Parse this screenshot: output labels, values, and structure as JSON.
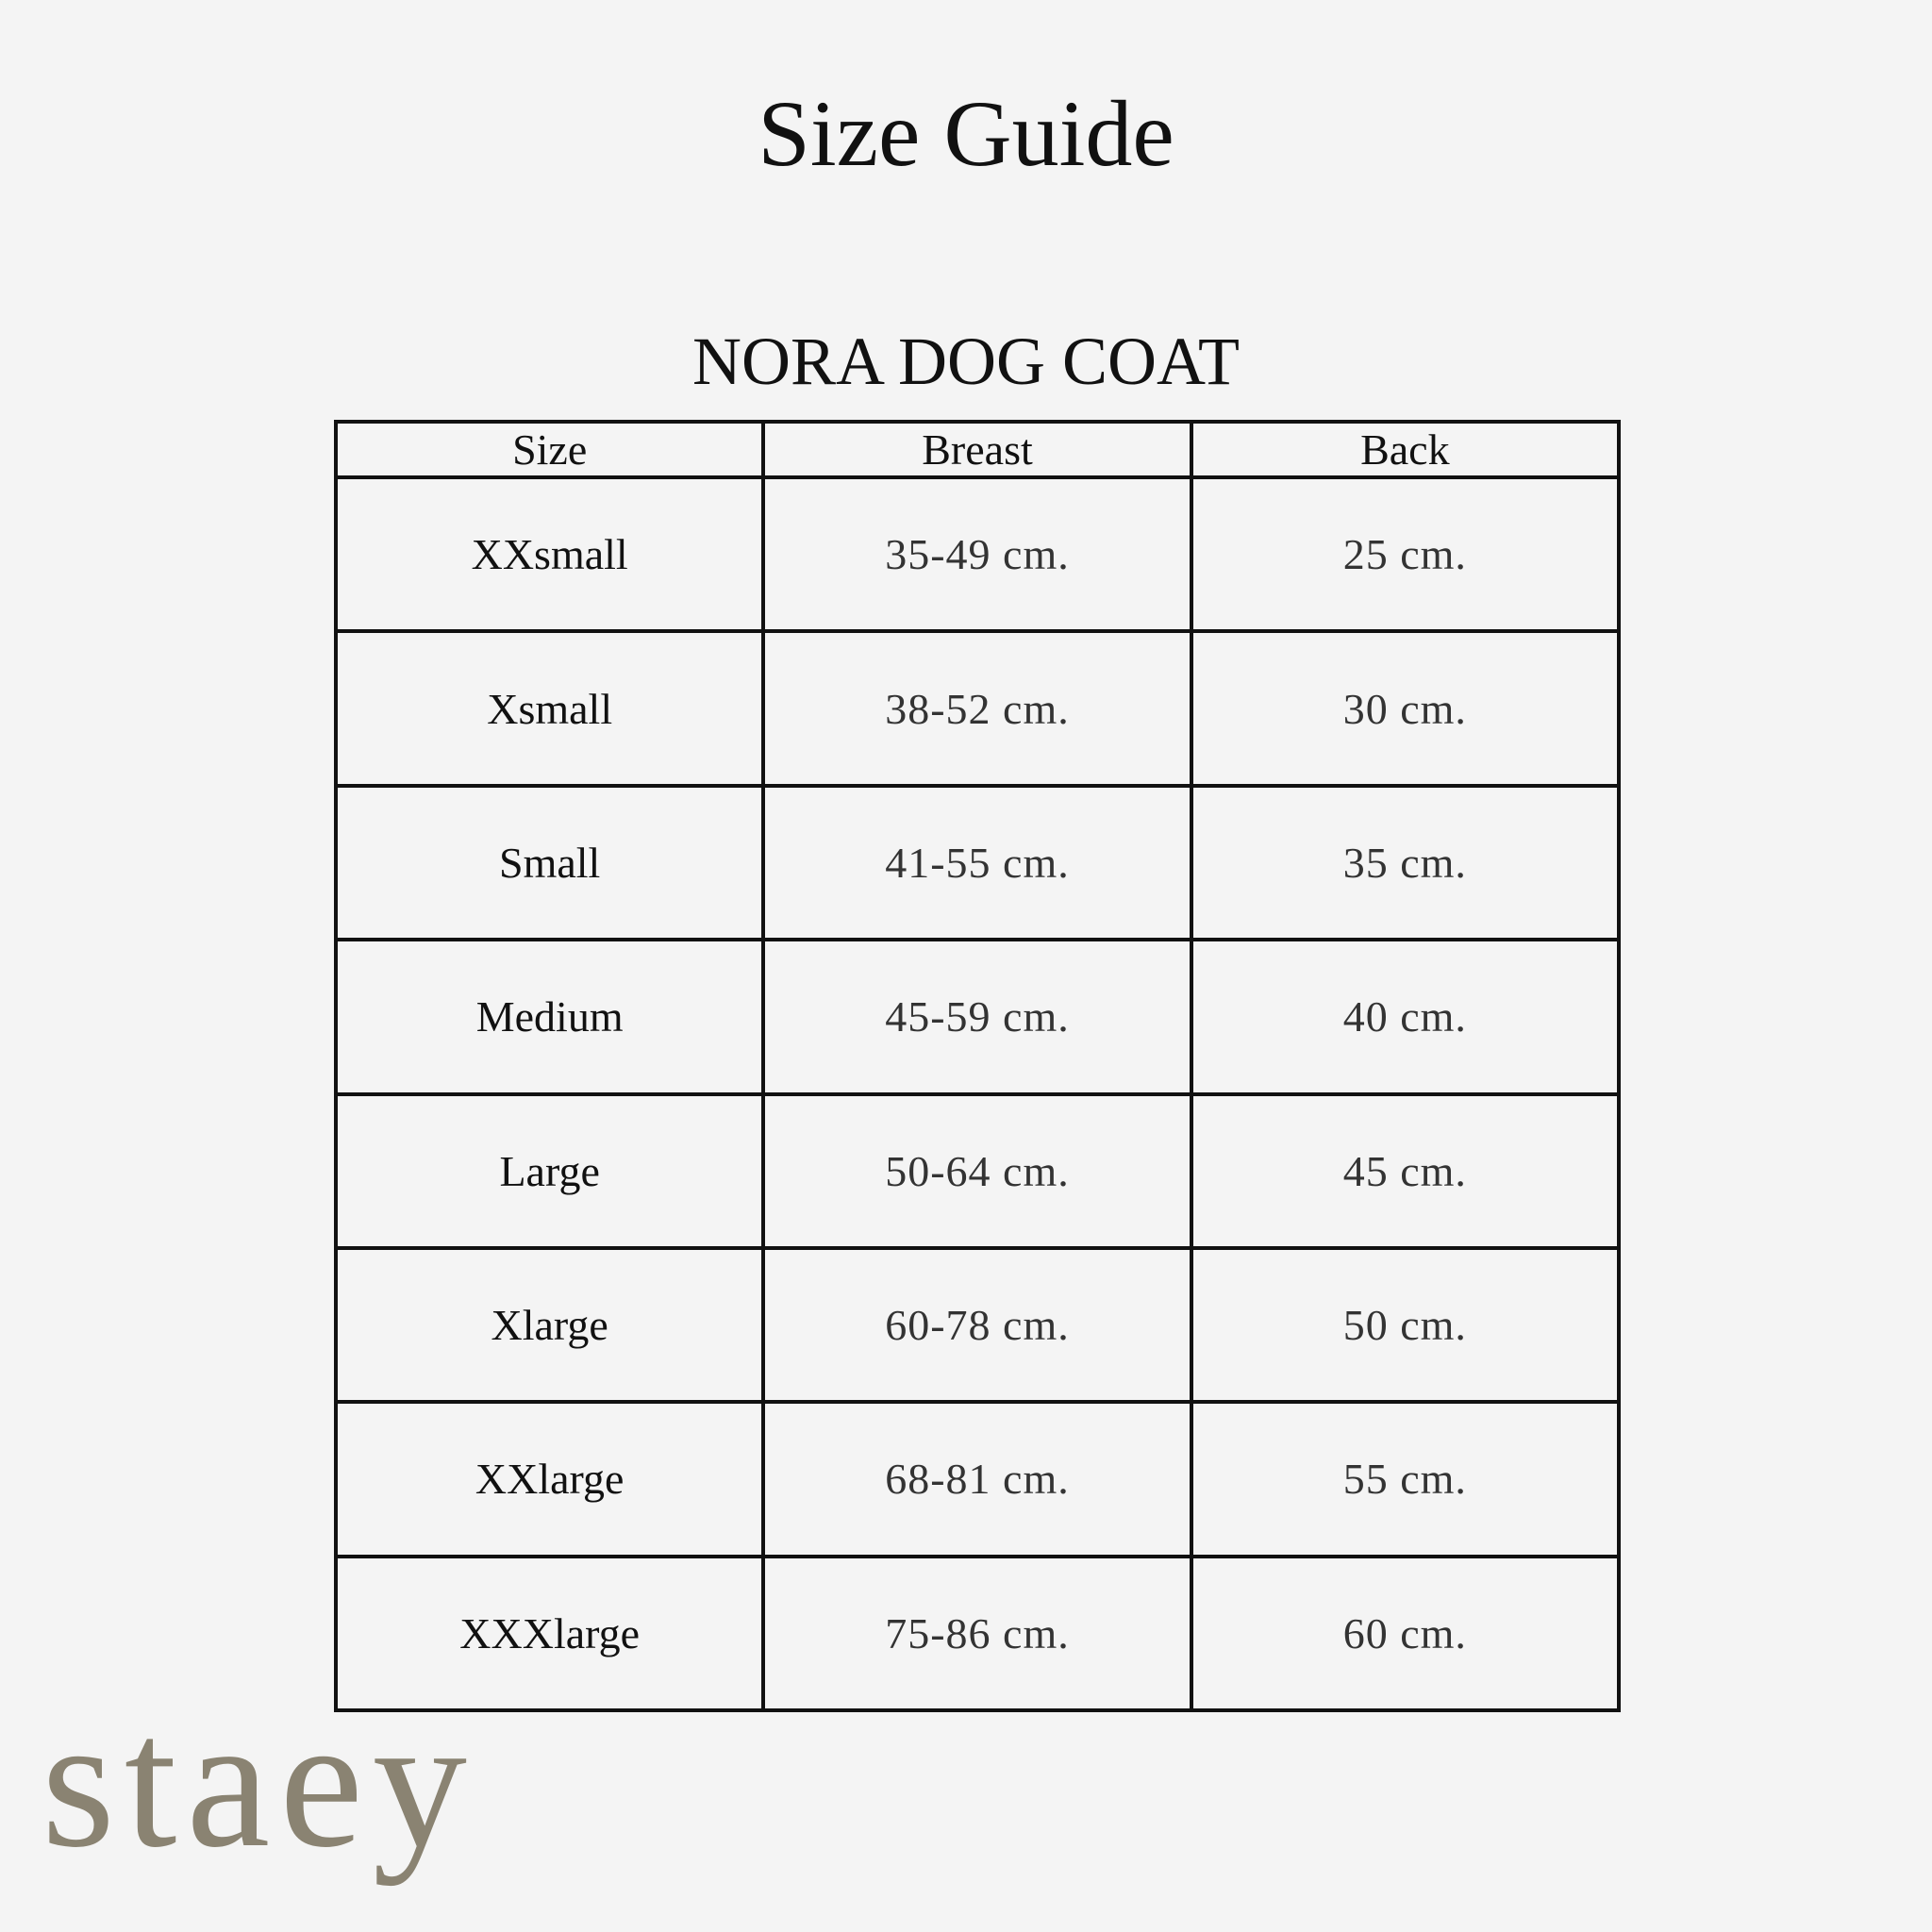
{
  "title": "Size Guide",
  "product": "NORA DOG COAT",
  "table": {
    "headers": [
      "Size",
      "Breast",
      "Back"
    ],
    "rows": [
      [
        "XXsmall",
        "35-49 cm.",
        "25 cm."
      ],
      [
        "Xsmall",
        "38-52 cm.",
        "30 cm."
      ],
      [
        "Small",
        "41-55 cm.",
        "35 cm."
      ],
      [
        "Medium",
        "45-59 cm.",
        "40 cm."
      ],
      [
        "Large",
        "50-64 cm.",
        "45 cm."
      ],
      [
        "Xlarge",
        "60-78 cm.",
        "50 cm."
      ],
      [
        "XXlarge",
        "68-81 cm.",
        "55 cm."
      ],
      [
        "XXXlarge",
        "75-86 cm.",
        "60 cm."
      ]
    ]
  },
  "brand": {
    "logo_text": "staey",
    "color": "#8a8372"
  }
}
